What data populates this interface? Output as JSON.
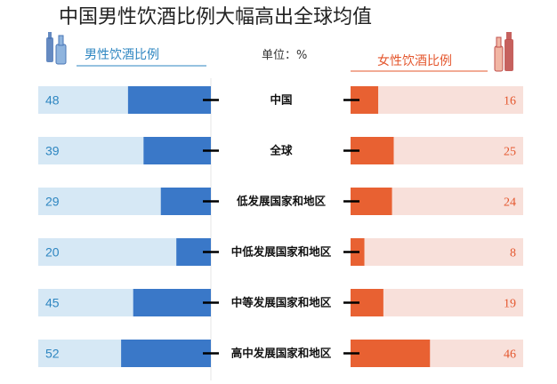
{
  "title": "中国男性饮酒比例大幅高出全球均值",
  "unit_label": "单位：%",
  "colors": {
    "male": "#3a78c8",
    "male_track": "#d6e8f5",
    "male_text": "#2e86c1",
    "female": "#e86132",
    "female_track": "#f8e0da",
    "female_text": "#e4572e",
    "axis": "#000000"
  },
  "chart_data": {
    "type": "bar",
    "layout": "back-to-back",
    "title": "中国男性饮酒比例大幅高出全球均值",
    "unit": "%",
    "xlim": [
      0,
      100
    ],
    "categories": [
      "中国",
      "全球",
      "低发展国家和地区",
      "中低发展国家和地区",
      "中等发展国家和地区",
      "高中发展国家和地区"
    ],
    "series": [
      {
        "name": "男性饮酒比例",
        "values": [
          48,
          39,
          29,
          20,
          45,
          52
        ]
      },
      {
        "name": "女性饮酒比例",
        "values": [
          16,
          25,
          24,
          8,
          19,
          46
        ]
      }
    ]
  }
}
